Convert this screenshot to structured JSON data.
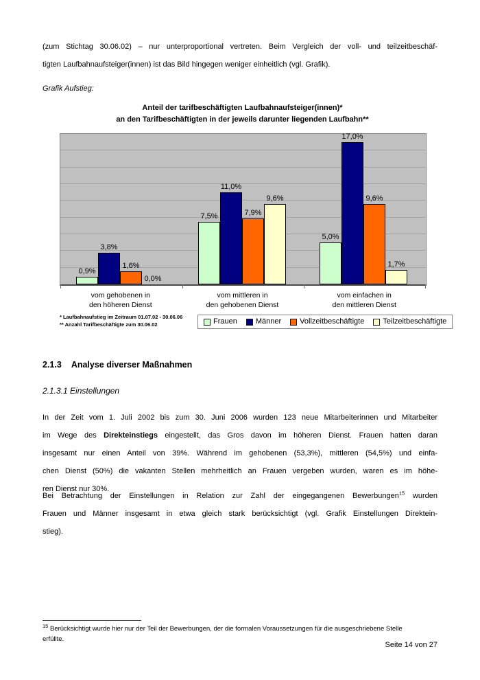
{
  "intro": {
    "lines": [
      "(zum Stichtag 30.06.02) – nur unterproportional vertreten. Beim Vergleich der voll- und teilzeitbeschäf-",
      "tigten Laufbahnaufsteiger(innen) ist das Bild hingegen weniger einheitlich (vgl. Grafik)."
    ]
  },
  "grafik_label": "Grafik Aufstieg:",
  "chart_data": {
    "type": "bar",
    "title_lines": [
      "Anteil der tarifbeschäftigten Laufbahnaufsteiger(innen)*",
      "an den Tarifbeschäftigten in der jeweils darunter liegenden Laufbahn**"
    ],
    "categories": [
      [
        "vom gehobenen in",
        "den höheren Dienst"
      ],
      [
        "vom mittleren in",
        "den gehobenen Dienst"
      ],
      [
        "vom einfachen in",
        "den mittleren Dienst"
      ]
    ],
    "series": [
      {
        "name": "Frauen",
        "color": "#ccffcc",
        "values": [
          0.9,
          7.5,
          5.0
        ],
        "labels": [
          "0,9%",
          "7,5%",
          "5,0%"
        ]
      },
      {
        "name": "Männer",
        "color": "#000080",
        "values": [
          3.8,
          11.0,
          17.0
        ],
        "labels": [
          "3,8%",
          "11,0%",
          "17,0%"
        ]
      },
      {
        "name": "Vollzeitbeschäftigte",
        "color": "#ff6600",
        "values": [
          1.6,
          7.9,
          9.6
        ],
        "labels": [
          "1,6%",
          "7,9%",
          "9,6%"
        ]
      },
      {
        "name": "Teilzeitbeschäftigte",
        "color": "#ffffcc",
        "values": [
          0.0,
          9.6,
          1.7
        ],
        "labels": [
          "0,0%",
          "9,6%",
          "1,7%"
        ]
      }
    ],
    "ylim": [
      0,
      18
    ],
    "grid_step": 2,
    "grid": true,
    "legend_position": "bottom",
    "plot_bg": "#c0c0c0",
    "footnotes": [
      "* Laufbahnaufstieg im Zeitraum 01.07.02 - 30.06.06",
      "** Anzahl Tarifbeschäftigte zum 30.06.02"
    ]
  },
  "section_heading": {
    "number": "2.1.3",
    "text": "Analyse diverser Maßnahmen"
  },
  "subsection_heading": "2.1.3.1 Einstellungen",
  "para1": {
    "lines": [
      "In der Zeit vom 1. Juli 2002 bis zum 30. Juni 2006 wurden 123 neue Mitarbeiterinnen und Mitarbeiter",
      [
        {
          "t": "im Wege des "
        },
        {
          "t": "Direkteinstiegs",
          "b": true
        },
        {
          "t": " eingestellt, das Gros davon im höheren Dienst. Frauen hatten daran"
        }
      ],
      "insgesamt nur einen Anteil von 39%. Während im gehobenen (53,3%), mittleren (54,5%) und einfa-",
      "chen Dienst (50%) die vakanten Stellen mehrheitlich an Frauen vergeben wurden, waren es im höhe-",
      "ren Dienst nur 30%."
    ]
  },
  "para2": {
    "lines": [
      [
        {
          "t": "Bei Betrachtung der Einstellungen in Relation zur Zahl der eingegangenen Bewerbungen"
        },
        {
          "t": "15",
          "sup": true
        },
        {
          "t": " wurden"
        }
      ],
      "Frauen und Männer insgesamt in etwa gleich stark berücksichtigt (vgl. Grafik Einstellungen Direktein-",
      "stieg)."
    ]
  },
  "footnote": {
    "lines": [
      [
        {
          "t": "15",
          "sup": true
        },
        {
          "t": " Berücksichtigt wurde hier nur der Teil der Bewerbungen, der die formalen Voraussetzungen für die ausgeschriebene Stelle"
        }
      ],
      "erfüllte."
    ]
  },
  "footer": {
    "page_label": "Seite 14 von 27"
  }
}
